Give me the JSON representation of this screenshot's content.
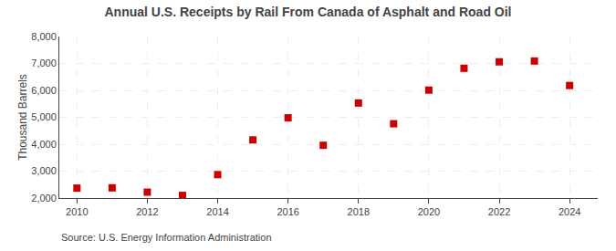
{
  "chart_data": {
    "type": "scatter",
    "title": "Annual U.S. Receipts by Rail From Canada of Asphalt and Road Oil",
    "ylabel": "Thousand Barrels",
    "annotations": [
      "Source: U.S. Energy Information Administration"
    ],
    "x": [
      2010,
      2011,
      2012,
      2013,
      2014,
      2015,
      2016,
      2017,
      2018,
      2019,
      2020,
      2021,
      2022,
      2023,
      2024
    ],
    "values": [
      2370,
      2380,
      2220,
      2100,
      2870,
      4160,
      4980,
      3960,
      5530,
      4760,
      6010,
      6820,
      7060,
      7090,
      6180
    ],
    "color": "#cc0000",
    "marker": "square",
    "xlim": [
      2009.5,
      2024.8
    ],
    "ylim": [
      2000,
      8000
    ],
    "xticks": [
      2010,
      2012,
      2014,
      2016,
      2018,
      2020,
      2022,
      2024
    ],
    "yticks": [
      {
        "value": 2000,
        "label": "2,000"
      },
      {
        "value": 3000,
        "label": "3,000"
      },
      {
        "value": 4000,
        "label": "4,000"
      },
      {
        "value": 5000,
        "label": "5,000"
      },
      {
        "value": 6000,
        "label": "6,000"
      },
      {
        "value": 7000,
        "label": "7,000"
      },
      {
        "value": 8000,
        "label": "8,000"
      }
    ],
    "grid": true
  }
}
